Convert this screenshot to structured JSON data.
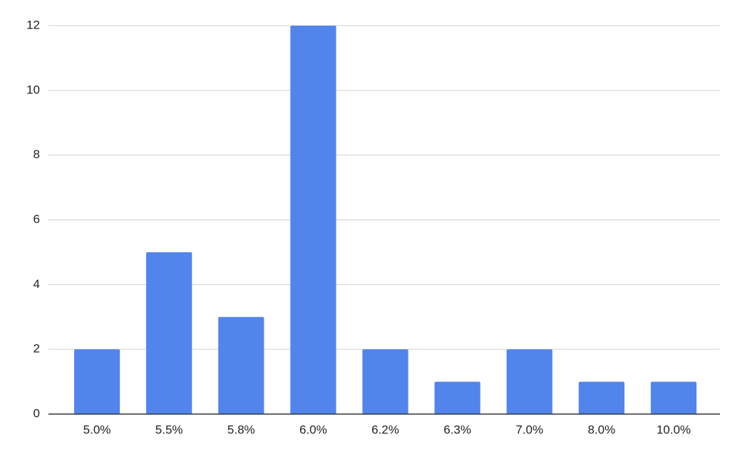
{
  "chart_data": {
    "type": "bar",
    "categories": [
      "5.0%",
      "5.5%",
      "5.8%",
      "6.0%",
      "6.2%",
      "6.3%",
      "7.0%",
      "8.0%",
      "10.0%"
    ],
    "values": [
      2,
      5,
      3,
      12,
      2,
      1,
      2,
      1,
      1
    ],
    "color": "#5185ec",
    "ylim": [
      0,
      12
    ],
    "yticks": [
      0,
      2,
      4,
      6,
      8,
      10,
      12
    ],
    "grid": true
  }
}
